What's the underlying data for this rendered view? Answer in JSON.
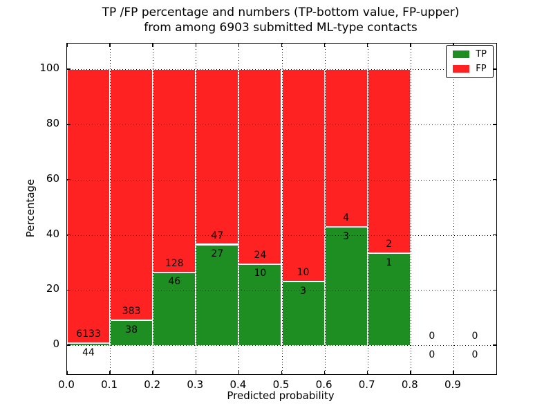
{
  "title": {
    "line1": "TP /FP percentage and numbers (TP-bottom value, FP-upper)",
    "line2": "from among 6903 submitted ML-type contacts"
  },
  "axes": {
    "xlabel": "Predicted probability",
    "ylabel": "Percentage",
    "xticks": [
      "0.0",
      "0.1",
      "0.2",
      "0.3",
      "0.4",
      "0.5",
      "0.6",
      "0.7",
      "0.8",
      "0.9"
    ],
    "yticks": [
      0,
      20,
      40,
      60,
      80,
      100
    ]
  },
  "legend": {
    "position": "upper right",
    "items": [
      {
        "label": "TP",
        "color": "#1e8e22"
      },
      {
        "label": "FP",
        "color": "#ff2222"
      }
    ]
  },
  "chart_data": {
    "type": "bar",
    "stacked": true,
    "normalized": "each bin stacks to 100%",
    "title": "TP /FP percentage and numbers (TP-bottom value, FP-upper) from among 6903 submitted ML-type contacts",
    "xlabel": "Predicted probability",
    "ylabel": "Percentage",
    "total_submitted": 6903,
    "bin_edges": [
      0.0,
      0.1,
      0.2,
      0.3,
      0.4,
      0.5,
      0.6,
      0.7,
      0.8,
      0.9,
      1.0
    ],
    "bin_centers": [
      0.05,
      0.15,
      0.25,
      0.35,
      0.45,
      0.55,
      0.65,
      0.75,
      0.85,
      0.95
    ],
    "series": [
      {
        "name": "TP",
        "color": "#1e8e22",
        "counts": [
          44,
          38,
          46,
          27,
          10,
          3,
          3,
          1,
          0,
          0
        ]
      },
      {
        "name": "FP",
        "color": "#ff2222",
        "counts": [
          6133,
          383,
          128,
          47,
          24,
          10,
          4,
          2,
          0,
          0
        ]
      }
    ],
    "tp_percent": [
      0.71,
      9.03,
      26.44,
      36.49,
      29.41,
      23.08,
      42.86,
      33.33,
      0,
      0
    ],
    "xlim": [
      0.0,
      1.0
    ],
    "ylim": [
      -10.5,
      109.3
    ],
    "grid": true,
    "grid_style": "dotted",
    "bar_edge_color": "#ffffff",
    "legend_position": "upper right"
  }
}
